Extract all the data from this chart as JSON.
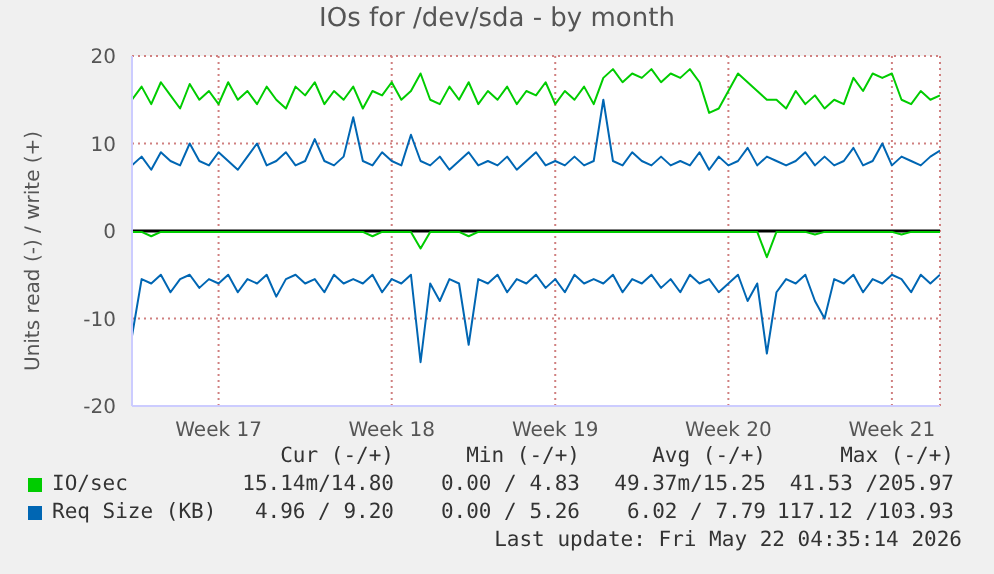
{
  "chart_data": {
    "type": "line",
    "title": "IOs for /dev/sda - by month",
    "ylabel": "Units read (-) / write (+)",
    "categories": [
      null,
      null,
      null,
      null,
      null,
      null,
      null,
      null,
      null,
      "Week 17",
      null,
      null,
      null,
      null,
      null,
      null,
      null,
      null,
      null,
      null,
      null,
      null,
      null,
      null,
      null,
      null,
      null,
      "Week 18",
      null,
      null,
      null,
      null,
      null,
      null,
      null,
      null,
      null,
      null,
      null,
      null,
      null,
      null,
      null,
      null,
      "Week 19",
      null,
      null,
      null,
      null,
      null,
      null,
      null,
      null,
      null,
      null,
      null,
      null,
      null,
      null,
      null,
      null,
      null,
      "Week 20",
      null,
      null,
      null,
      null,
      null,
      null,
      null,
      null,
      null,
      null,
      null,
      null,
      null,
      null,
      null,
      null,
      "Week 21",
      null,
      null,
      null,
      null,
      null
    ],
    "ylim": [
      -20,
      20
    ],
    "yticks": [
      -20,
      -10,
      0,
      10,
      20
    ],
    "grid": true,
    "marker": "none",
    "line_style": "solid",
    "legend": "bottom",
    "ref_lines": [
      {
        "axis": "y",
        "value": 0,
        "color": "#000000"
      }
    ],
    "series": [
      {
        "name": "IO/sec",
        "color": "#00cc00",
        "values": [
          15,
          16.5,
          14.5,
          17,
          15.5,
          14,
          16.8,
          15,
          16,
          14.5,
          17,
          15,
          16,
          14.5,
          16.5,
          15,
          14,
          16.5,
          15.5,
          17,
          14.5,
          16,
          15,
          16.5,
          14,
          16,
          15.5,
          17,
          15,
          16,
          18,
          15,
          14.5,
          16.5,
          15,
          17,
          14.5,
          16,
          15,
          16.5,
          14.5,
          16,
          15.5,
          17,
          14.5,
          16,
          15,
          16.5,
          14.5,
          17.5,
          18.5,
          17,
          18,
          17.5,
          18.5,
          17,
          18,
          17.5,
          18.5,
          17,
          13.5,
          14,
          16,
          18,
          17,
          16,
          15,
          15,
          14,
          16,
          14.5,
          15.5,
          14,
          15,
          14.5,
          17.5,
          16,
          18,
          17.5,
          18,
          15,
          14.5,
          16,
          15,
          15.5
        ]
      },
      {
        "color": "#00cc00",
        "values": [
          -0.1,
          -0.1,
          -0.6,
          -0.1,
          -0.1,
          -0.1,
          -0.1,
          -0.1,
          -0.1,
          -0.1,
          -0.1,
          -0.1,
          -0.1,
          -0.1,
          -0.1,
          -0.1,
          -0.1,
          -0.1,
          -0.1,
          -0.1,
          -0.1,
          -0.1,
          -0.1,
          -0.1,
          -0.1,
          -0.6,
          -0.1,
          -0.1,
          -0.1,
          -0.1,
          -2,
          -0.1,
          -0.1,
          -0.1,
          -0.1,
          -0.6,
          -0.1,
          -0.1,
          -0.1,
          -0.1,
          -0.1,
          -0.1,
          -0.1,
          -0.1,
          -0.1,
          -0.1,
          -0.1,
          -0.1,
          -0.1,
          -0.1,
          -0.1,
          -0.1,
          -0.1,
          -0.1,
          -0.1,
          -0.1,
          -0.1,
          -0.1,
          -0.1,
          -0.1,
          -0.1,
          -0.1,
          -0.1,
          -0.1,
          -0.1,
          -0.1,
          -3,
          -0.1,
          -0.1,
          -0.1,
          -0.1,
          -0.4,
          -0.1,
          -0.1,
          -0.1,
          -0.1,
          -0.1,
          -0.1,
          -0.1,
          -0.1,
          -0.4,
          -0.1,
          -0.1,
          -0.1,
          -0.1
        ]
      },
      {
        "name": "Req Size (KB)",
        "color": "#0066b3",
        "values": [
          7.5,
          8.5,
          7,
          9,
          8,
          7.5,
          10,
          8,
          7.5,
          9,
          8,
          7,
          8.5,
          10,
          7.5,
          8,
          9,
          7.5,
          8,
          10.5,
          8,
          7.5,
          8.5,
          13,
          8,
          7.5,
          9,
          8,
          7.5,
          11,
          8,
          7.5,
          8.5,
          7,
          8,
          9,
          7.5,
          8,
          7.5,
          8.5,
          7,
          8,
          9,
          7.5,
          8,
          7.5,
          8.5,
          7.5,
          8,
          15,
          8,
          7.5,
          9,
          8,
          7.5,
          8.5,
          7.5,
          8,
          7.5,
          9,
          7,
          8.5,
          7.5,
          8,
          9.5,
          7.5,
          8.5,
          8,
          7.5,
          8,
          9,
          7.5,
          8.5,
          7.5,
          8,
          9.5,
          7.5,
          8,
          10,
          7.5,
          8.5,
          8,
          7.5,
          8.5,
          9.2
        ]
      },
      {
        "color": "#0066b3",
        "values": [
          -12,
          -5.5,
          -6,
          -5,
          -7,
          -5.5,
          -5,
          -6.5,
          -5.5,
          -6,
          -5,
          -7,
          -5.5,
          -6,
          -5,
          -7.5,
          -5.5,
          -5,
          -6,
          -5.5,
          -7,
          -5,
          -6,
          -5.5,
          -6,
          -5,
          -7,
          -5.5,
          -6,
          -5,
          -15,
          -6,
          -8,
          -5.5,
          -6,
          -13,
          -5.5,
          -6,
          -5,
          -7,
          -5.5,
          -6,
          -5,
          -6.5,
          -5.5,
          -7,
          -5,
          -6,
          -5.5,
          -6,
          -5,
          -7,
          -5.5,
          -6,
          -5,
          -6.5,
          -5.5,
          -7,
          -5,
          -6,
          -5.5,
          -7,
          -6,
          -5,
          -8,
          -6,
          -14,
          -7,
          -5.5,
          -6,
          -5,
          -8,
          -10,
          -5.5,
          -6,
          -5,
          -7,
          -5.5,
          -6,
          -5,
          -5.5,
          -7,
          -5,
          -6,
          -5
        ]
      }
    ],
    "annotations": [
      "Cur (-/+)",
      "Min (-/+)",
      "Avg (-/+)",
      "Max (-/+)",
      "15.14m/14.80",
      "0.00 / 4.83",
      "49.37m/15.25",
      "41.53 /205.97",
      "4.96 / 9.20",
      "0.00 / 5.26",
      "6.02 / 7.79",
      "117.12 /103.93",
      "Last update: Fri May 22 04:35:14 2026"
    ]
  }
}
